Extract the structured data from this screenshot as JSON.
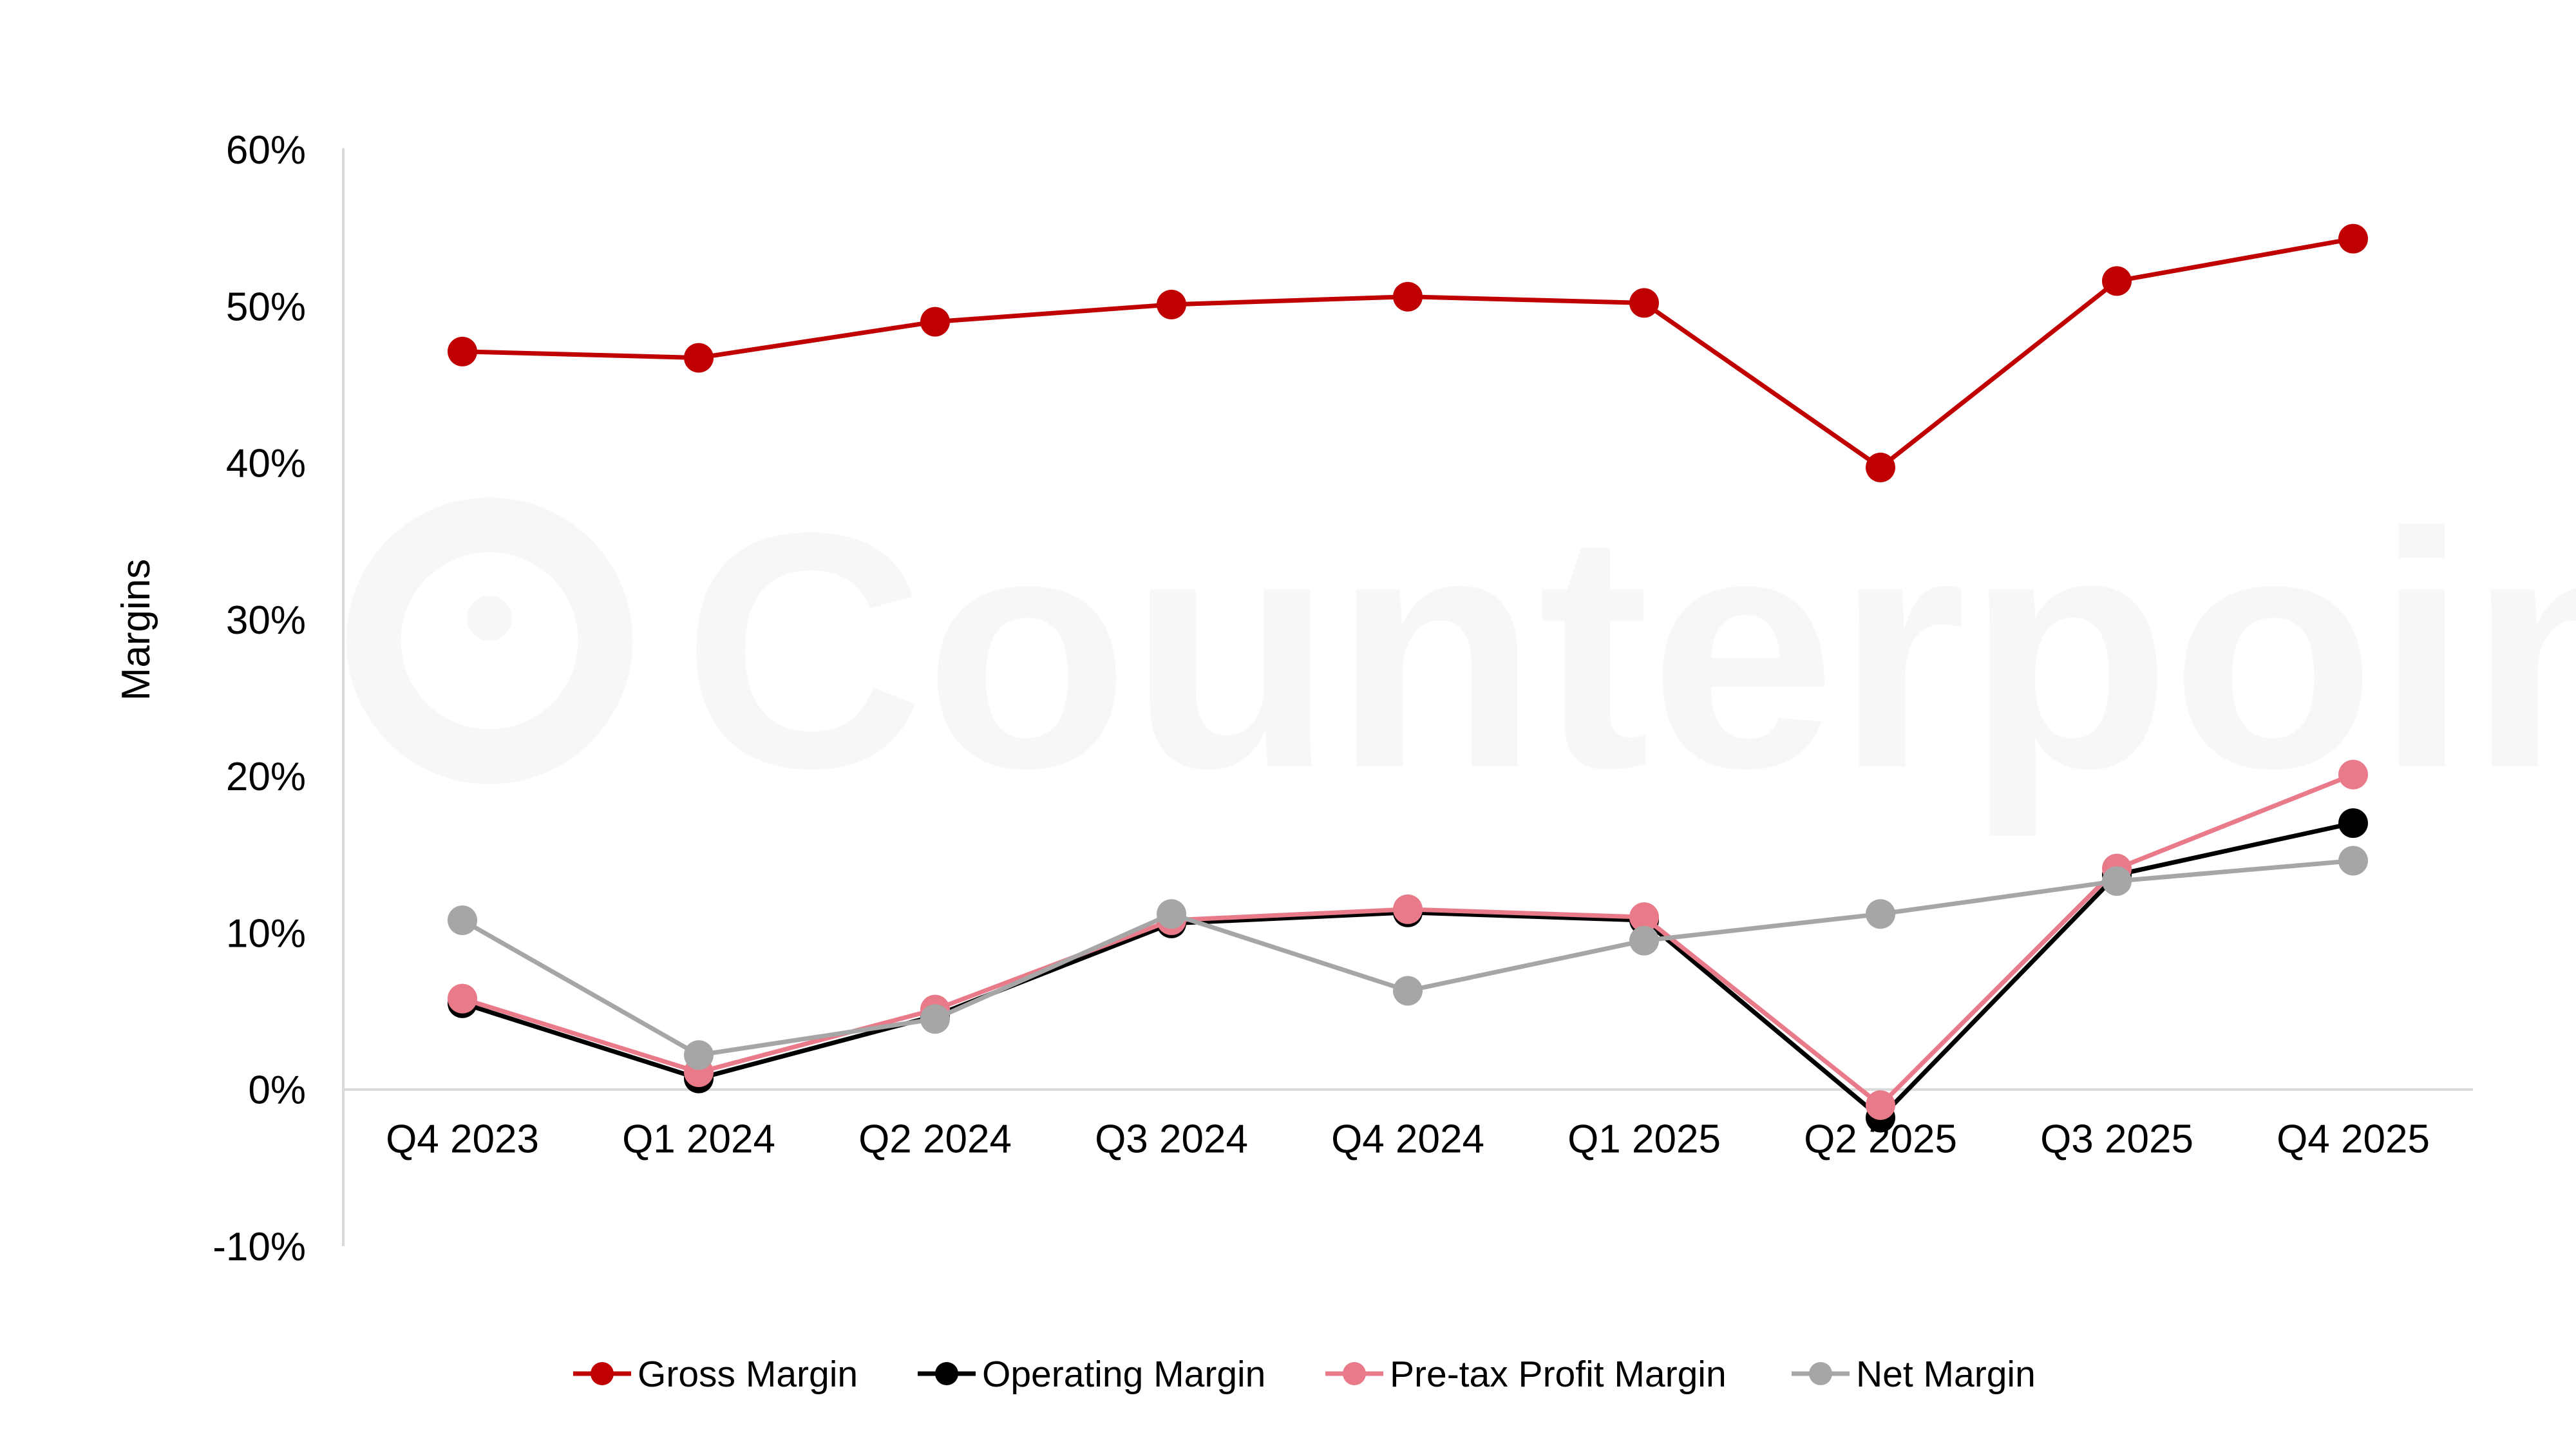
{
  "chart_data": {
    "type": "line",
    "title": "",
    "xlabel": "",
    "ylabel": "Margins",
    "categories": [
      "Q4 2023",
      "Q1 2024",
      "Q2 2024",
      "Q3 2024",
      "Q4 2024",
      "Q1 2025",
      "Q2 2025",
      "Q3 2025",
      "Q4 2025"
    ],
    "ylim": [
      -10,
      60
    ],
    "yticks": [
      -10,
      0,
      10,
      20,
      30,
      40,
      50,
      60
    ],
    "ytick_labels": [
      "-10%",
      "0%",
      "10%",
      "20%",
      "30%",
      "40%",
      "50%",
      "60%"
    ],
    "y_unit": "%",
    "grid": false,
    "legend_position": "bottom",
    "series": [
      {
        "name": "Gross Margin",
        "color": "#c00000",
        "values": [
          47.1,
          46.7,
          49.0,
          50.1,
          50.6,
          50.2,
          39.7,
          51.6,
          54.3
        ]
      },
      {
        "name": "Operating Margin",
        "color": "#000000",
        "values": [
          5.5,
          0.7,
          4.7,
          10.6,
          11.3,
          10.8,
          -1.8,
          13.7,
          17.0
        ]
      },
      {
        "name": "Pre-tax Profit Margin",
        "color": "#e87a8a",
        "values": [
          5.8,
          1.1,
          5.1,
          10.8,
          11.5,
          11.0,
          -1.0,
          14.1,
          20.1
        ]
      },
      {
        "name": "Net Margin",
        "color": "#a6a6a6",
        "values": [
          10.8,
          2.2,
          4.5,
          11.2,
          6.3,
          9.5,
          11.2,
          13.3,
          14.6
        ]
      }
    ]
  },
  "watermark": {
    "text": "Counterpoint"
  }
}
